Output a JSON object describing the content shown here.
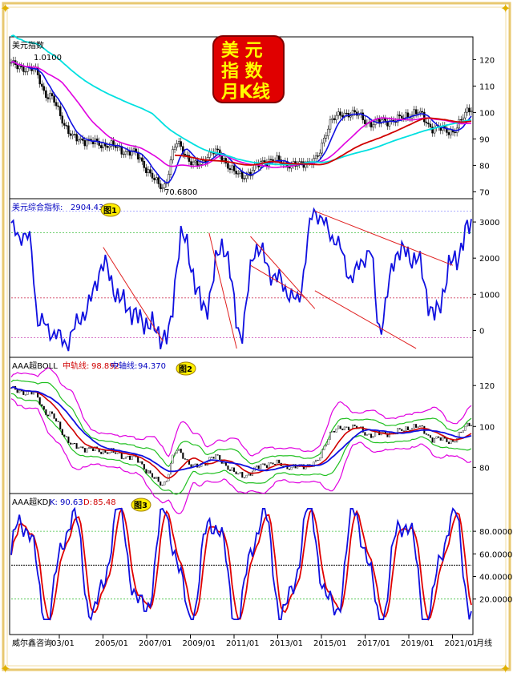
{
  "title": {
    "line1": "美 元",
    "line2": "指 数",
    "line3": "月K线"
  },
  "footer": {
    "source": "威尔鑫咨询",
    "period": "月线"
  },
  "chart_data": [
    {
      "type": "candlestick",
      "name_label": "美元指数",
      "high_label": "1.0100",
      "low_label": "70.6800",
      "ylim": [
        68,
        128
      ],
      "yticks": [
        70,
        80,
        90,
        100,
        110,
        120
      ],
      "colors": {
        "blue": "#1010e0",
        "magenta": "#e000e0",
        "cyan": "#00e0e0",
        "red": "#d00000"
      }
    },
    {
      "type": "line",
      "name_label": "美元综合指标:",
      "value_label": "2904.43",
      "badge": "图1",
      "ylim": [
        -700,
        3600
      ],
      "yticks": [
        0,
        1000,
        2000,
        3000
      ],
      "ref_lines": [
        3300,
        2700,
        900,
        -200
      ]
    },
    {
      "type": "line",
      "name_label": "AAA超BOLL",
      "mid_label": "中轨线:",
      "mid_value": "98.892",
      "ma_label": "中轴线:",
      "ma_value": "94.370",
      "badge": "图2",
      "ylim": [
        68,
        133
      ],
      "yticks": [
        80,
        100,
        120
      ]
    },
    {
      "type": "line",
      "name_label": "AAA超KDJ",
      "k_label": "K:",
      "k_value": "90.63",
      "d_label": "D:",
      "d_value": "85.48",
      "badge": "图3",
      "ylim": [
        -10,
        112
      ],
      "yticks": [
        "20.0000",
        "40.0000",
        "60.0000",
        "80.0000"
      ],
      "ytick_values": [
        20,
        40,
        60,
        80
      ],
      "ref_lines": [
        80,
        50,
        20
      ]
    }
  ],
  "x_axis": {
    "labels": [
      "03/01",
      "2005/01",
      "2007/01",
      "2009/01",
      "2011/01",
      "2013/01",
      "2015/01",
      "2017/01",
      "2019/01",
      "2021/01"
    ]
  }
}
